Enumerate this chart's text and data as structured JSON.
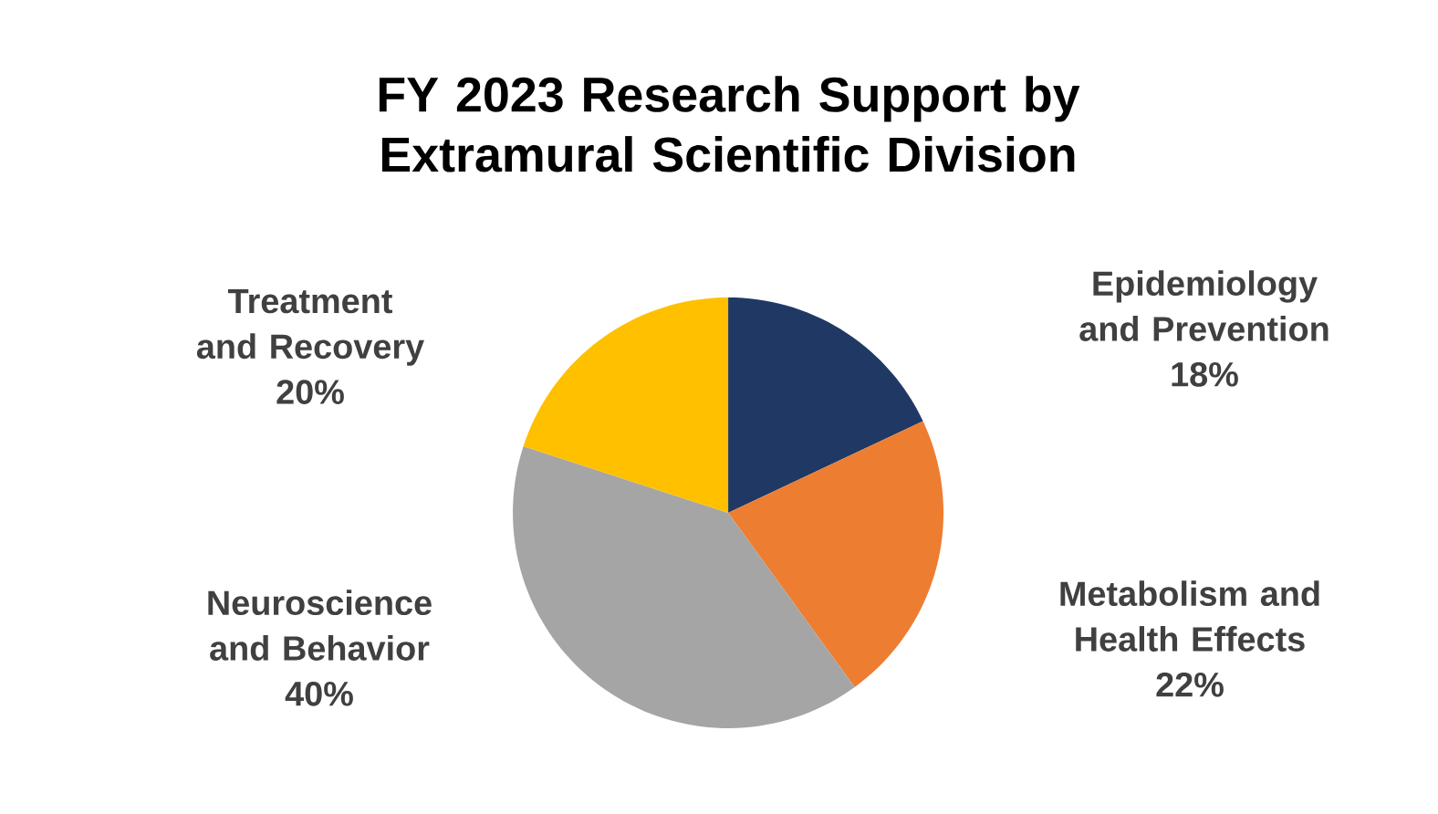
{
  "chart_data": {
    "type": "pie",
    "title": "FY 2023 Research Support by Extramural Scientific Division",
    "categories": [
      "Epidemiology and Prevention",
      "Metabolism and Health Effects",
      "Neuroscience and Behavior",
      "Treatment and Recovery"
    ],
    "values": [
      18,
      22,
      40,
      20
    ],
    "colors": [
      "#203864",
      "#ed7d31",
      "#a5a5a5",
      "#ffc000"
    ],
    "value_labels": [
      "18%",
      "22%",
      "40%",
      "20%"
    ]
  }
}
